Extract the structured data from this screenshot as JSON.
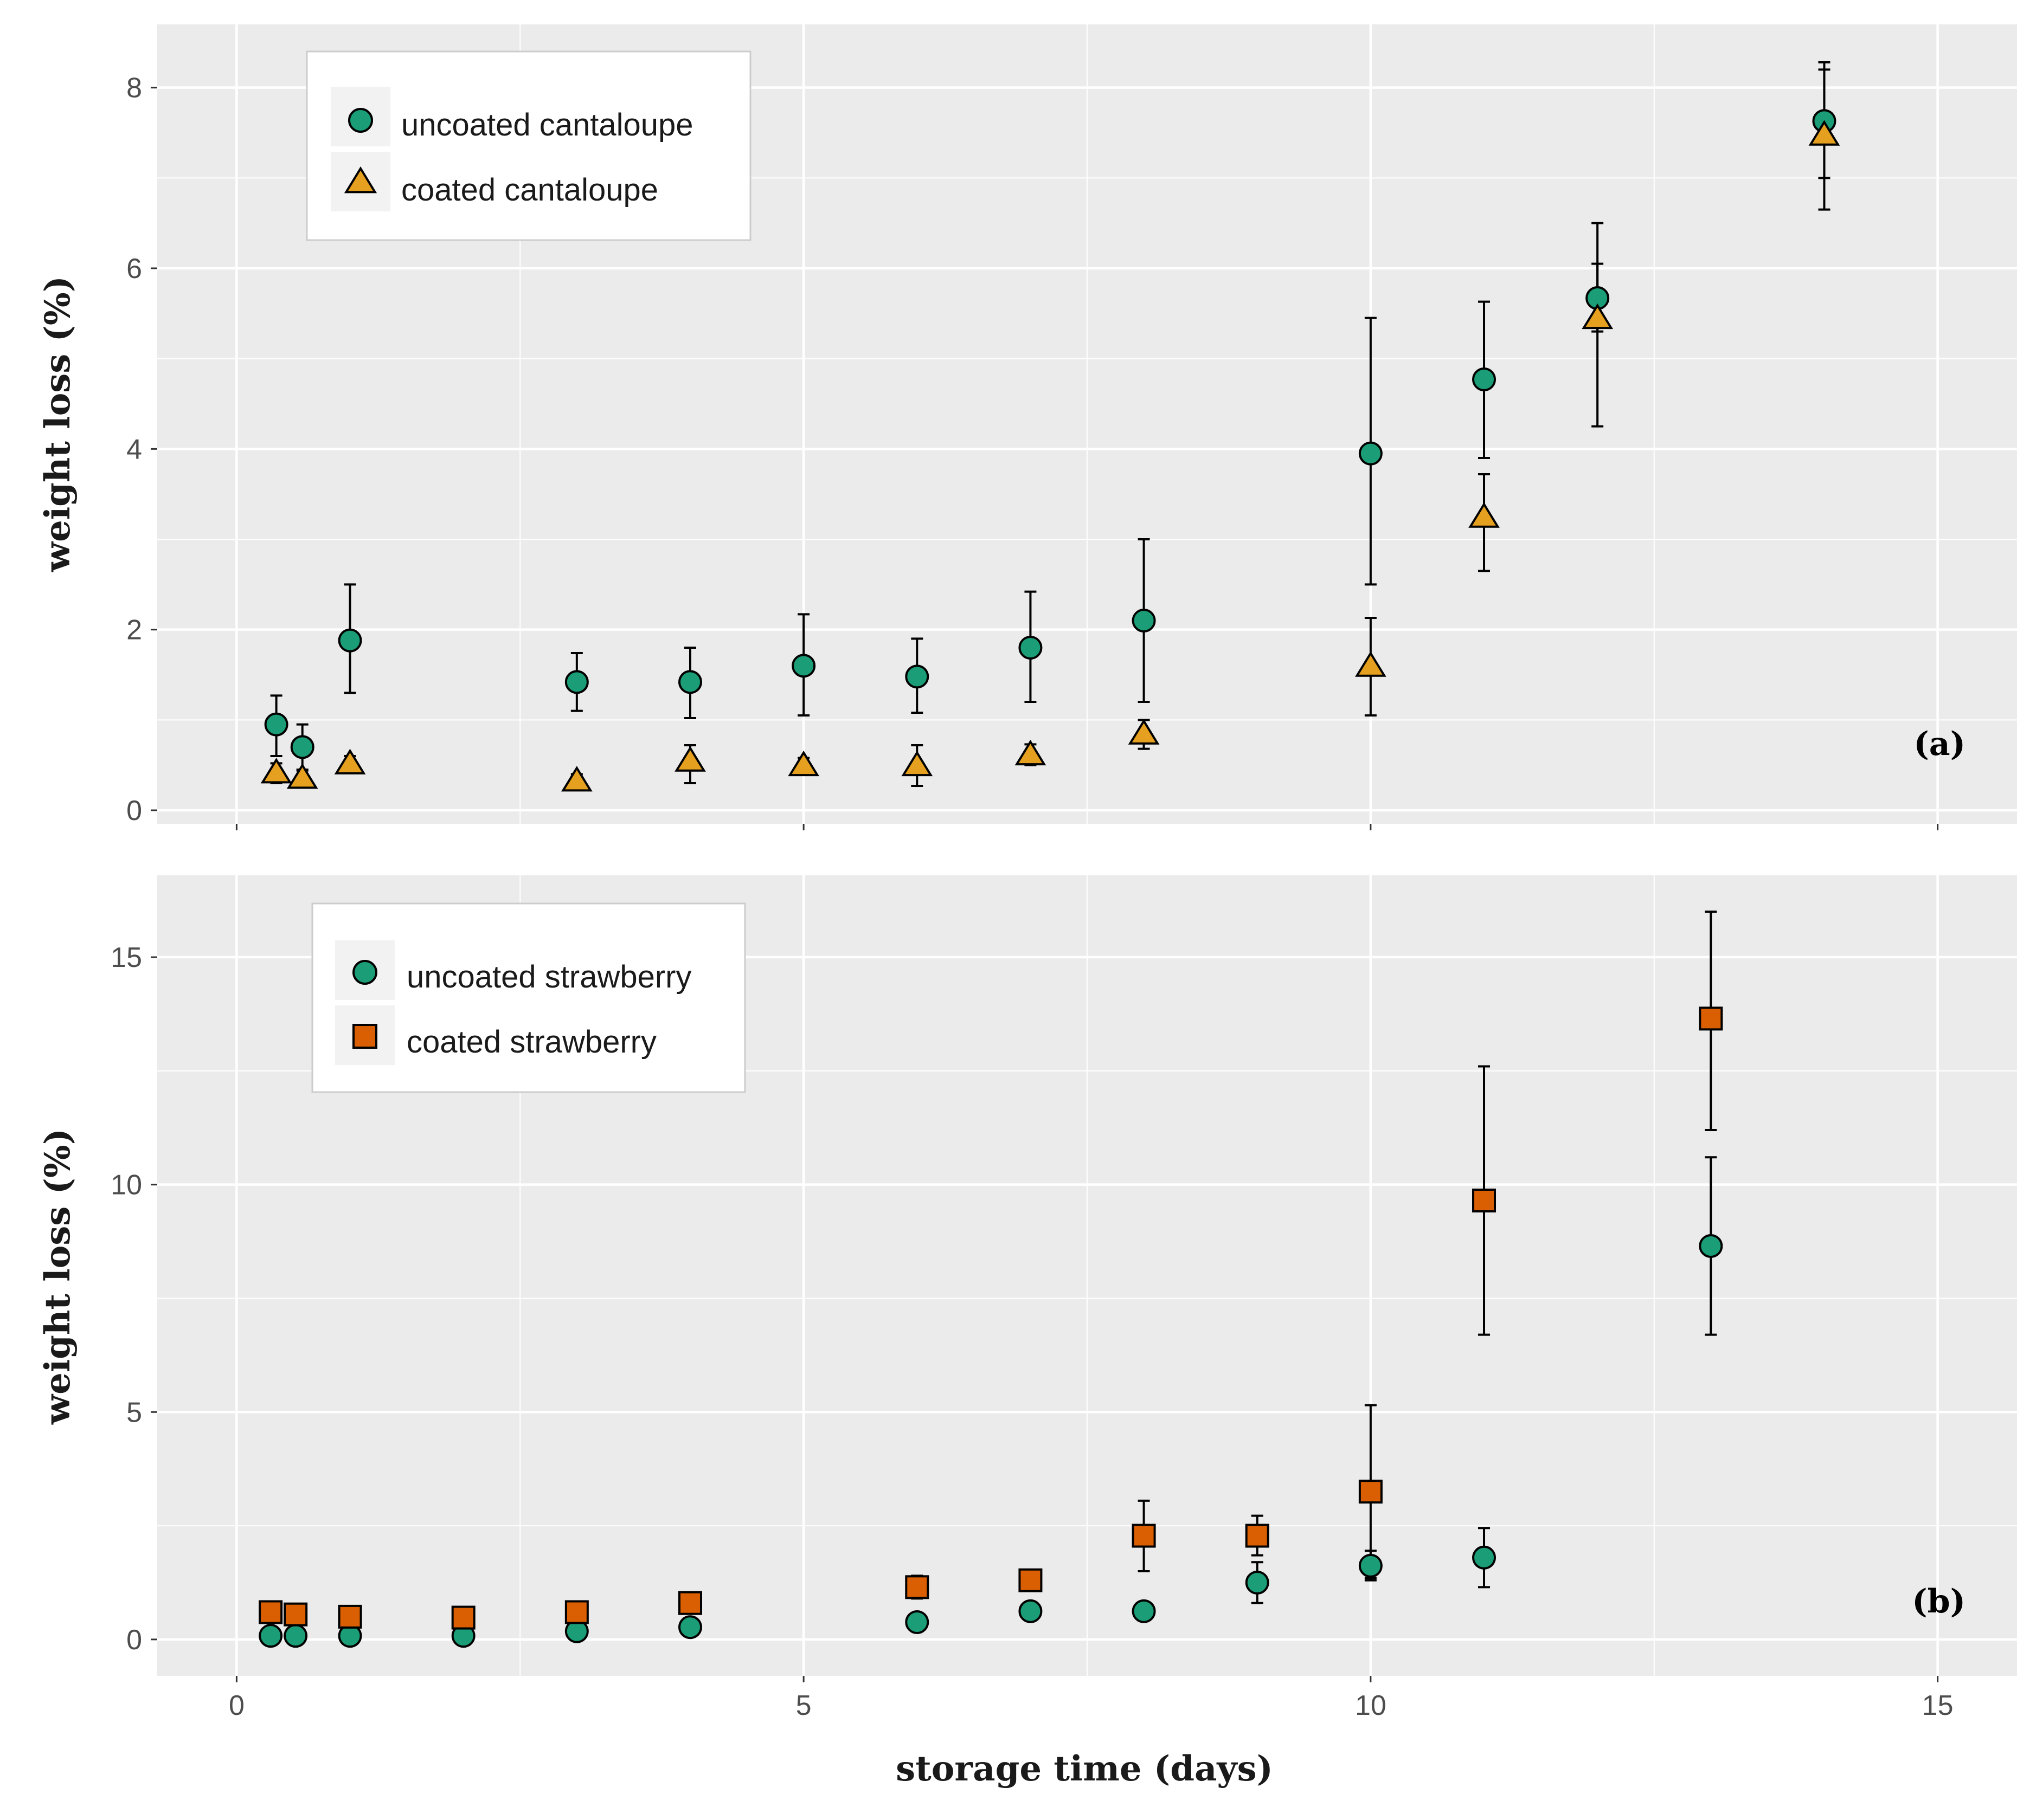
{
  "chart_data": [
    {
      "type": "scatter",
      "panel_tag": "(a)",
      "xlabel": "",
      "ylabel": "weight loss (%)",
      "xlim": [
        -0.7,
        15.7
      ],
      "ylim": [
        -0.15,
        8.7
      ],
      "x_ticks": [
        0,
        5,
        10,
        15
      ],
      "y_ticks": [
        0,
        2,
        4,
        6,
        8
      ],
      "y_tick_labels": [
        "0",
        "2",
        "4",
        "6",
        "8"
      ],
      "grid": true,
      "legend_position": "top-left",
      "series": [
        {
          "name": "uncoated cantaloupe",
          "marker": "circle",
          "color": "#1b9e77",
          "points": [
            {
              "x": 0.35,
              "y": 0.95,
              "lo": 0.6,
              "hi": 1.27
            },
            {
              "x": 0.58,
              "y": 0.7,
              "lo": 0.45,
              "hi": 0.95
            },
            {
              "x": 1,
              "y": 1.88,
              "lo": 1.3,
              "hi": 2.5
            },
            {
              "x": 3,
              "y": 1.42,
              "lo": 1.1,
              "hi": 1.74
            },
            {
              "x": 4,
              "y": 1.42,
              "lo": 1.02,
              "hi": 1.8
            },
            {
              "x": 5,
              "y": 1.6,
              "lo": 1.05,
              "hi": 2.17
            },
            {
              "x": 6,
              "y": 1.48,
              "lo": 1.08,
              "hi": 1.9
            },
            {
              "x": 7,
              "y": 1.8,
              "lo": 1.2,
              "hi": 2.42
            },
            {
              "x": 8,
              "y": 2.1,
              "lo": 1.2,
              "hi": 3.0
            },
            {
              "x": 10,
              "y": 3.95,
              "lo": 2.5,
              "hi": 5.45
            },
            {
              "x": 11,
              "y": 4.77,
              "lo": 3.9,
              "hi": 5.63
            },
            {
              "x": 12,
              "y": 5.67,
              "lo": 5.3,
              "hi": 6.5
            },
            {
              "x": 14,
              "y": 7.63,
              "lo": 7.0,
              "hi": 8.28
            }
          ]
        },
        {
          "name": "coated cantaloupe",
          "marker": "triangle",
          "color": "#e6a020",
          "points": [
            {
              "x": 0.35,
              "y": 0.42,
              "lo": 0.3,
              "hi": 0.52
            },
            {
              "x": 0.58,
              "y": 0.36,
              "lo": 0.28,
              "hi": 0.44
            },
            {
              "x": 1,
              "y": 0.52,
              "lo": 0.42,
              "hi": 0.6
            },
            {
              "x": 3,
              "y": 0.33,
              "lo": 0.25,
              "hi": 0.4
            },
            {
              "x": 4,
              "y": 0.55,
              "lo": 0.3,
              "hi": 0.72
            },
            {
              "x": 5,
              "y": 0.5,
              "lo": 0.42,
              "hi": 0.58
            },
            {
              "x": 6,
              "y": 0.5,
              "lo": 0.27,
              "hi": 0.72
            },
            {
              "x": 7,
              "y": 0.62,
              "lo": 0.5,
              "hi": 0.73
            },
            {
              "x": 8,
              "y": 0.85,
              "lo": 0.68,
              "hi": 1.0
            },
            {
              "x": 10,
              "y": 1.6,
              "lo": 1.05,
              "hi": 2.13
            },
            {
              "x": 11,
              "y": 3.25,
              "lo": 2.65,
              "hi": 3.72
            },
            {
              "x": 12,
              "y": 5.45,
              "lo": 4.25,
              "hi": 6.05
            },
            {
              "x": 14,
              "y": 7.48,
              "lo": 6.65,
              "hi": 8.2
            }
          ]
        }
      ]
    },
    {
      "type": "scatter",
      "panel_tag": "(b)",
      "xlabel": "storage time (days)",
      "ylabel": "weight loss (%)",
      "xlim": [
        -0.7,
        15.7
      ],
      "ylim": [
        -0.8,
        16.8
      ],
      "x_ticks": [
        0,
        5,
        10,
        15
      ],
      "x_tick_labels": [
        "0",
        "5",
        "10",
        "15"
      ],
      "y_ticks": [
        0,
        5,
        10,
        15
      ],
      "y_tick_labels": [
        "0",
        "5",
        "10",
        "15"
      ],
      "grid": true,
      "legend_position": "top-left",
      "series": [
        {
          "name": "uncoated strawberry",
          "marker": "circle",
          "color": "#1b9e77",
          "points": [
            {
              "x": 0.3,
              "y": 0.08,
              "lo": 0.0,
              "hi": 0.15
            },
            {
              "x": 0.52,
              "y": 0.08,
              "lo": 0.0,
              "hi": 0.15
            },
            {
              "x": 1,
              "y": 0.08,
              "lo": 0.0,
              "hi": 0.15
            },
            {
              "x": 2,
              "y": 0.08,
              "lo": 0.0,
              "hi": 0.15
            },
            {
              "x": 3,
              "y": 0.18,
              "lo": 0.08,
              "hi": 0.28
            },
            {
              "x": 4,
              "y": 0.27,
              "lo": 0.17,
              "hi": 0.37
            },
            {
              "x": 6,
              "y": 0.38,
              "lo": 0.28,
              "hi": 0.48
            },
            {
              "x": 7,
              "y": 0.62,
              "lo": 0.5,
              "hi": 0.72
            },
            {
              "x": 8,
              "y": 0.62,
              "lo": 0.5,
              "hi": 0.72
            },
            {
              "x": 9,
              "y": 1.25,
              "lo": 0.8,
              "hi": 1.7
            },
            {
              "x": 10,
              "y": 1.62,
              "lo": 1.3,
              "hi": 1.95
            },
            {
              "x": 11,
              "y": 1.8,
              "lo": 1.15,
              "hi": 2.45
            },
            {
              "x": 13,
              "y": 8.65,
              "lo": 6.7,
              "hi": 10.6
            }
          ]
        },
        {
          "name": "coated strawberry",
          "marker": "square",
          "color": "#d95f02",
          "points": [
            {
              "x": 0.3,
              "y": 0.6,
              "lo": 0.45,
              "hi": 0.75
            },
            {
              "x": 0.52,
              "y": 0.55,
              "lo": 0.4,
              "hi": 0.7
            },
            {
              "x": 1,
              "y": 0.5,
              "lo": 0.38,
              "hi": 0.62
            },
            {
              "x": 2,
              "y": 0.48,
              "lo": 0.36,
              "hi": 0.6
            },
            {
              "x": 3,
              "y": 0.6,
              "lo": 0.45,
              "hi": 0.75
            },
            {
              "x": 4,
              "y": 0.8,
              "lo": 0.65,
              "hi": 0.95
            },
            {
              "x": 6,
              "y": 1.15,
              "lo": 0.9,
              "hi": 1.4
            },
            {
              "x": 7,
              "y": 1.3,
              "lo": 1.1,
              "hi": 1.5
            },
            {
              "x": 8,
              "y": 2.28,
              "lo": 1.5,
              "hi": 3.05
            },
            {
              "x": 9,
              "y": 2.28,
              "lo": 1.85,
              "hi": 2.72
            },
            {
              "x": 10,
              "y": 3.25,
              "lo": 1.35,
              "hi": 5.15
            },
            {
              "x": 11,
              "y": 9.65,
              "lo": 6.7,
              "hi": 12.6
            },
            {
              "x": 13,
              "y": 13.65,
              "lo": 11.2,
              "hi": 16.0
            }
          ]
        }
      ]
    }
  ]
}
